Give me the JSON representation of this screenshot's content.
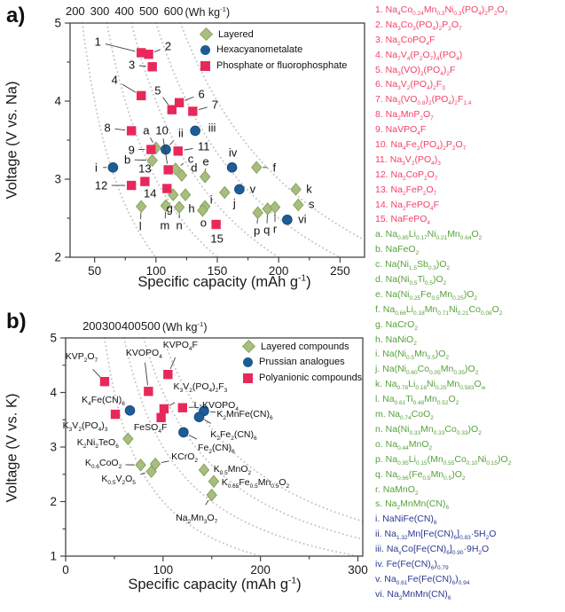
{
  "sidebar": {
    "groups": [
      {
        "name": "phosphate-or-fluorophosphate",
        "color": "#f43f68",
        "items": [
          {
            "no": "1.",
            "formula": "Na4Co0.24Mn0.3Ni0.3(PO4)2P2O7"
          },
          {
            "no": "2.",
            "formula": "Na3Co3(PO4)2P2O7"
          },
          {
            "no": "3.",
            "formula": "Na2CoPO4F"
          },
          {
            "no": "4.",
            "formula": "Na7V4(P2O7)4(PO4)"
          },
          {
            "no": "5.",
            "formula": "Na3(VO)2(PO4)2F"
          },
          {
            "no": "6.",
            "formula": "Na3V2(PO4)2F3"
          },
          {
            "no": "7.",
            "formula": "Na3(VO0.8)2(PO4)2F1.4"
          },
          {
            "no": "8.",
            "formula": "Na2MnP2O7"
          },
          {
            "no": "9.",
            "formula": "NaVPO4F"
          },
          {
            "no": "10.",
            "formula": "Na4Fe3(PO4)2P2O7"
          },
          {
            "no": "11.",
            "formula": "Na3V2(PO4)3"
          },
          {
            "no": "12.",
            "formula": "Na2CoP2O7"
          },
          {
            "no": "13.",
            "formula": "Na2FeP2O7"
          },
          {
            "no": "14.",
            "formula": "Na2FePO4F"
          },
          {
            "no": "15.",
            "formula": "NaFePO4"
          }
        ]
      },
      {
        "name": "layered",
        "color": "#57a23b",
        "items": [
          {
            "no": "a.",
            "formula": "Na0.85Li0.17Ni0.21Mn0.64O2"
          },
          {
            "no": "b.",
            "formula": "NaFeO2"
          },
          {
            "no": "c.",
            "formula": "Na(Ni1.5Sb0.3)O2"
          },
          {
            "no": "d.",
            "formula": "Na(Ni0.5Ti0.5)O2"
          },
          {
            "no": "e.",
            "formula": "Na(Ni0.25Fe0.5Mn0.25)O2"
          },
          {
            "no": "f.",
            "formula": "Na0.66Li0.18Mn0.71Ni0.21Co0.08O2"
          },
          {
            "no": "g.",
            "formula": "NaCrO2"
          },
          {
            "no": "h.",
            "formula": "NaNiO2"
          },
          {
            "no": "i.",
            "formula": "Na(Ni0.5Mn0.5)O2"
          },
          {
            "no": "j.",
            "formula": "Na(Ni0.60Co0.05Mn0.35)O2"
          },
          {
            "no": "k.",
            "formula": "Na0.78Li0.18Ni0.25Mn0.583Ow"
          },
          {
            "no": "l.",
            "formula": "Na0.61Ti0.48Mn0.52O2"
          },
          {
            "no": "m.",
            "formula": "Na0.74CoO2"
          },
          {
            "no": "n.",
            "formula": "Na(Ni0.33Mn0.33Co0.33)O2"
          },
          {
            "no": "o.",
            "formula": "Na0.44MnO2"
          },
          {
            "no": "p.",
            "formula": "Na0.95Li0.15(Mn0.55Co0.10Ni0.15)O2"
          },
          {
            "no": "q.",
            "formula": "Na0.66(Fe0.5Mn0.5)O2"
          },
          {
            "no": "r.",
            "formula": "NaMnO2"
          },
          {
            "no": "s.",
            "formula": "Na2MnMn(CN)6"
          }
        ]
      },
      {
        "name": "hexacyanometalate",
        "color": "#2b3a91",
        "items": [
          {
            "no": "i.",
            "formula": "NaNiFe(CN)6"
          },
          {
            "no": "ii.",
            "formula": "Na1.32Mn[Fe(CN)6]0.83·5H2O"
          },
          {
            "no": "iii.",
            "formula": "NaxCo[Fe(CN)6]0.90·9H2O"
          },
          {
            "no": "iv.",
            "formula": "Fe(Fe(CN)6)0.79"
          },
          {
            "no": "v.",
            "formula": "Na0.61Fe(Fe(CN)6)0.94"
          },
          {
            "no": "vi.",
            "formula": "Na2MnMn(CN)6"
          }
        ]
      }
    ]
  },
  "chart_data": [
    {
      "type": "scatter",
      "panel_letter": "a)",
      "xlabel": "Specific capacity (mAh g^-1)",
      "ylabel": "Voltage (V vs. Na)",
      "xlim": [
        30,
        270
      ],
      "ylim": [
        2,
        5
      ],
      "x_ticks": [
        50,
        100,
        150,
        200,
        250
      ],
      "x_minor_ticks": [
        75,
        125,
        175,
        225
      ],
      "y_ticks": [
        2,
        3,
        4,
        5
      ],
      "y_minor_ticks": [
        2.5,
        3.5,
        4.5
      ],
      "grid": false,
      "legend_position": "top-right",
      "energy_contours": {
        "values": [
          200,
          300,
          400,
          500,
          600
        ],
        "unit": "(Wh kg^-1)"
      },
      "series": [
        {
          "name": "Layered",
          "marker": "diamond",
          "fill": "#a8bd80",
          "stroke": "#8aa45c",
          "points": [
            {
              "label": "a",
              "x": 100,
              "y": 3.4,
              "dx": -11,
              "dy": -20
            },
            {
              "label": "b",
              "x": 97,
              "y": 3.24,
              "dx": -28,
              "dy": -1
            },
            {
              "label": "c",
              "x": 116,
              "y": 3.13,
              "dx": 17,
              "dy": -12
            },
            {
              "label": "d",
              "x": 121,
              "y": 3.05,
              "dx": 14,
              "dy": -9
            },
            {
              "label": "e",
              "x": 140,
              "y": 3.03,
              "dx": 1,
              "dy": -17
            },
            {
              "label": "f",
              "x": 182,
              "y": 3.15,
              "dx": 20,
              "dy": 0
            },
            {
              "label": "g",
              "x": 114,
              "y": 2.8,
              "dx": -4,
              "dy": 15
            },
            {
              "label": "h",
              "x": 124,
              "y": 2.8,
              "dx": 7,
              "dy": 15
            },
            {
              "label": "i",
              "x": 140,
              "y": 2.65,
              "dx": 7,
              "dy": -8
            },
            {
              "label": "j",
              "x": 156,
              "y": 2.83,
              "dx": 11,
              "dy": 12
            },
            {
              "label": "k",
              "x": 214,
              "y": 2.87,
              "dx": 15,
              "dy": 0
            },
            {
              "label": "l",
              "x": 88,
              "y": 2.65,
              "dx": -1,
              "dy": 22
            },
            {
              "label": "m",
              "x": 108,
              "y": 2.66,
              "dx": -1,
              "dy": 22
            },
            {
              "label": "n",
              "x": 119,
              "y": 2.64,
              "dx": 0,
              "dy": 20
            },
            {
              "label": "o",
              "x": 138,
              "y": 2.6,
              "dx": 1,
              "dy": 14
            },
            {
              "label": "p",
              "x": 183,
              "y": 2.57,
              "dx": -1,
              "dy": 20
            },
            {
              "label": "q",
              "x": 191,
              "y": 2.62,
              "dx": -1,
              "dy": 24
            },
            {
              "label": "r",
              "x": 197,
              "y": 2.64,
              "dx": 0,
              "dy": 24
            },
            {
              "label": "s",
              "x": 216,
              "y": 2.67,
              "dx": 15,
              "dy": -1
            }
          ]
        },
        {
          "name": "Hexacyanometalate",
          "marker": "circle",
          "fill": "#1d5c95",
          "stroke": "#134776",
          "points": [
            {
              "label": "i",
              "x": 65,
              "y": 3.15,
              "dx": -19,
              "dy": 0
            },
            {
              "label": "ii",
              "x": 108,
              "y": 3.38,
              "dx": 17,
              "dy": -19
            },
            {
              "label": "iii",
              "x": 132,
              "y": 3.62,
              "dx": 19,
              "dy": -3
            },
            {
              "label": "iv",
              "x": 162,
              "y": 3.15,
              "dx": 1,
              "dy": -17
            },
            {
              "label": "v",
              "x": 168,
              "y": 2.87,
              "dx": 15,
              "dy": 0
            },
            {
              "label": "vi",
              "x": 207,
              "y": 2.48,
              "dx": 17,
              "dy": -1
            }
          ]
        },
        {
          "name": "Phosphate or fluorophosphate",
          "marker": "square",
          "fill": "#e8285b",
          "stroke": "#d11b49",
          "points": [
            {
              "label": "1",
              "x": 88,
              "y": 4.62,
              "dx": -49,
              "dy": -12
            },
            {
              "label": "2",
              "x": 94,
              "y": 4.6,
              "dx": 22,
              "dy": -9
            },
            {
              "label": "3",
              "x": 97,
              "y": 4.44,
              "dx": -23,
              "dy": -2
            },
            {
              "label": "4",
              "x": 88,
              "y": 4.07,
              "dx": -30,
              "dy": -18
            },
            {
              "label": "5",
              "x": 113,
              "y": 3.89,
              "dx": -16,
              "dy": -22
            },
            {
              "label": "6",
              "x": 119,
              "y": 3.98,
              "dx": 25,
              "dy": -10
            },
            {
              "label": "7",
              "x": 130,
              "y": 3.87,
              "dx": 25,
              "dy": -7
            },
            {
              "label": "8",
              "x": 80,
              "y": 3.62,
              "dx": -27,
              "dy": -3
            },
            {
              "label": "9",
              "x": 96,
              "y": 3.38,
              "dx": -22,
              "dy": 0
            },
            {
              "label": "10",
              "x": 110,
              "y": 3.12,
              "dx": -7,
              "dy": -44
            },
            {
              "label": "11",
              "x": 118,
              "y": 3.36,
              "dx": 29,
              "dy": -5
            },
            {
              "label": "12",
              "x": 80,
              "y": 2.92,
              "dx": -34,
              "dy": 0
            },
            {
              "label": "13",
              "x": 91,
              "y": 2.97,
              "dx": 0,
              "dy": -15
            },
            {
              "label": "14",
              "x": 109,
              "y": 2.88,
              "dx": -19,
              "dy": 5
            },
            {
              "label": "15",
              "x": 149,
              "y": 2.42,
              "dx": 1,
              "dy": 16
            }
          ]
        }
      ]
    },
    {
      "type": "scatter",
      "panel_letter": "b)",
      "xlabel": "Specific capacity (mAh g^-1)",
      "ylabel": "Voltage (V vs. K)",
      "xlim": [
        0,
        305
      ],
      "ylim": [
        1,
        5
      ],
      "x_ticks": [
        0,
        100,
        200,
        300
      ],
      "x_minor_ticks": [
        50,
        150,
        250
      ],
      "y_ticks": [
        1,
        2,
        3,
        4,
        5
      ],
      "y_minor_ticks": [
        1.5,
        2.5,
        3.5,
        4.5
      ],
      "grid": false,
      "legend_position": "top-right",
      "energy_contours": {
        "values": [
          200,
          300,
          400,
          500
        ],
        "unit": "(Wh kg^-1)"
      },
      "series": [
        {
          "name": "Layered compounds",
          "marker": "diamond",
          "fill": "#a8bd80",
          "stroke": "#8aa45c",
          "points": [
            {
              "label": "K2Ni2TeO6",
              "x": 64,
              "y": 3.15,
              "dx": -34,
              "dy": 5
            },
            {
              "label": "K0.6CoO2",
              "x": 77,
              "y": 2.67,
              "dx": -42,
              "dy": -1
            },
            {
              "label": "KCrO2",
              "x": 92,
              "y": 2.69,
              "dx": 33,
              "dy": -7
            },
            {
              "label": "K0.5V2O5",
              "x": 88,
              "y": 2.55,
              "dx": -37,
              "dy": 9
            },
            {
              "label": "K0.5MnO2",
              "x": 142,
              "y": 2.58,
              "dx": 32,
              "dy": 0
            },
            {
              "label": "K0.65Fe0.5Mn0.5O2",
              "x": 152,
              "y": 2.37,
              "dx": 47,
              "dy": 2
            },
            {
              "label": "Na2Mn3O7",
              "x": 150,
              "y": 2.12,
              "dx": -17,
              "dy": 27
            }
          ]
        },
        {
          "name": "Prussian analogues",
          "marker": "circle",
          "fill": "#1d5c95",
          "stroke": "#134776",
          "points": [
            {
              "label": "K4Fe(CN)6",
              "x": 66,
              "y": 3.67,
              "dx": -30,
              "dy": -11
            },
            {
              "label": "K2MnFe(CN)6",
              "x": 142,
              "y": 3.66,
              "dx": 46,
              "dy": 5
            },
            {
              "label": "K2Fe2(CN)6",
              "x": 137,
              "y": 3.55,
              "dx": 39,
              "dy": 21
            },
            {
              "label": "Fe2(CN)6",
              "x": 121,
              "y": 3.27,
              "dx": 37,
              "dy": 19
            }
          ]
        },
        {
          "name": "Polyanionic compounds",
          "marker": "square",
          "fill": "#e8285b",
          "stroke": "#d11b49",
          "points": [
            {
              "label": "KVP2O7",
              "x": 40,
              "y": 4.2,
              "dx": -26,
              "dy": -27
            },
            {
              "label": "KVOPO4",
              "x": 85,
              "y": 4.02,
              "dx": -5,
              "dy": -42
            },
            {
              "label": "KVPO4F",
              "x": 105,
              "y": 4.33,
              "dx": 14,
              "dy": -32
            },
            {
              "label": "K3V2(PO4)2F3",
              "x": 101,
              "y": 3.7,
              "dx": 41,
              "dy": -24
            },
            {
              "label": "L-KVOPO4",
              "x": 120,
              "y": 3.72,
              "dx": 38,
              "dy": -2
            },
            {
              "label": "K3V2(PO4)3",
              "x": 51,
              "y": 3.6,
              "dx": -34,
              "dy": 14
            },
            {
              "label": "FeSO4F",
              "x": 98,
              "y": 3.54,
              "dx": -12,
              "dy": 12
            }
          ]
        }
      ]
    }
  ]
}
